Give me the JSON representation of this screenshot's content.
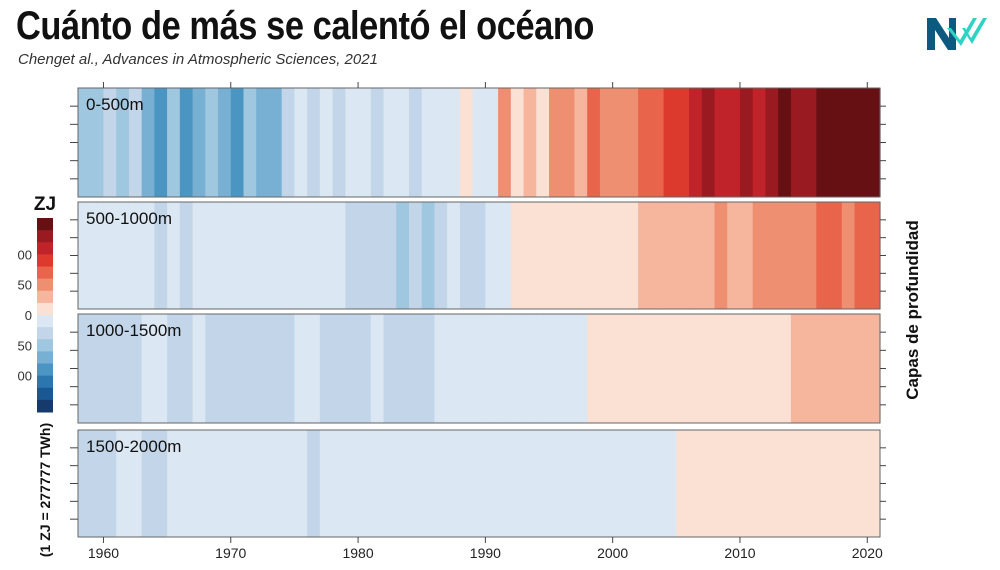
{
  "title": "Cuánto de más se calentó el océano",
  "subtitle": "Chenget al., Advances in Atmospheric Sciences, 2021",
  "logo_text": "NV",
  "brand_colors": {
    "dark": "#0d5a80",
    "accent": "#2ed3c3"
  },
  "chart_data": {
    "type": "heatmap",
    "x_range": [
      1958,
      2021
    ],
    "x_ticks": [
      "1960",
      "1970",
      "1980",
      "1990",
      "2000",
      "2010",
      "2020"
    ],
    "right_label": "Capas de profundidad",
    "colorbar": {
      "title": "ZJ",
      "tick_labels": [
        "00",
        "50",
        "0",
        "50",
        "00"
      ],
      "note": "(1 ZJ = 277777 TWh)",
      "levels_red": [
        "#fbe0d4",
        "#f6b59d",
        "#ee8f71",
        "#e8644a",
        "#dc3a2d",
        "#c0242a",
        "#991a20",
        "#661014"
      ],
      "levels_blue": [
        "#dbe7f2",
        "#c3d6e9",
        "#9fc7e0",
        "#78b0d3",
        "#4b95c3",
        "#2c76b0",
        "#1a5893",
        "#153a6b"
      ]
    },
    "years_start": 1958,
    "panels": [
      {
        "label": "0-500m",
        "levels": [
          -3,
          -3,
          -2,
          -3,
          -2,
          -4,
          -5,
          -3,
          -5,
          -4,
          -3,
          -4,
          -5,
          -3,
          -4,
          -4,
          -2,
          -1,
          -2,
          -1,
          -2,
          -1,
          -1,
          -2,
          -1,
          -1,
          -2,
          -1,
          -1,
          -1,
          1,
          -1,
          -1,
          3,
          1,
          2,
          1,
          3,
          3,
          2,
          4,
          3,
          3,
          3,
          4,
          4,
          5,
          5,
          6,
          7,
          6,
          6,
          7,
          6,
          7,
          8,
          7,
          7,
          8,
          8,
          8,
          8,
          8
        ]
      },
      {
        "label": "500-1000m",
        "levels": [
          -1,
          -1,
          -1,
          -1,
          -1,
          -1,
          -2,
          -1,
          -2,
          -1,
          -1,
          -1,
          -1,
          -1,
          -1,
          -1,
          -1,
          -1,
          -1,
          -1,
          -1,
          -2,
          -2,
          -2,
          -2,
          -3,
          -2,
          -3,
          -2,
          -1,
          -2,
          -2,
          -1,
          -1,
          1,
          1,
          1,
          1,
          1,
          1,
          1,
          1,
          1,
          1,
          2,
          2,
          2,
          2,
          2,
          2,
          3,
          2,
          2,
          3,
          3,
          3,
          3,
          3,
          4,
          4,
          3,
          4,
          4
        ]
      },
      {
        "label": "1000-1500m",
        "levels": [
          -2,
          -2,
          -2,
          -2,
          -2,
          -1,
          -1,
          -2,
          -2,
          -1,
          -2,
          -2,
          -2,
          -2,
          -2,
          -2,
          -2,
          -1,
          -1,
          -2,
          -2,
          -2,
          -2,
          -1,
          -2,
          -2,
          -2,
          -2,
          -1,
          -1,
          -1,
          -1,
          -1,
          -1,
          -1,
          -1,
          -1,
          -1,
          -1,
          -1,
          1,
          1,
          1,
          1,
          1,
          1,
          1,
          1,
          1,
          1,
          1,
          1,
          1,
          1,
          1,
          1,
          2,
          2,
          2,
          2,
          2,
          2,
          2
        ]
      },
      {
        "label": "1500-2000m",
        "levels": [
          -2,
          -2,
          -2,
          -1,
          -1,
          -2,
          -2,
          -1,
          -1,
          -1,
          -1,
          -1,
          -1,
          -1,
          -1,
          -1,
          -1,
          -1,
          -2,
          -1,
          -1,
          -1,
          -1,
          -1,
          -1,
          -1,
          -1,
          -1,
          -1,
          -1,
          -1,
          -1,
          -1,
          -1,
          -1,
          -1,
          -1,
          -1,
          -1,
          -1,
          -1,
          -1,
          -1,
          -1,
          -1,
          -1,
          -1,
          1,
          1,
          1,
          1,
          1,
          1,
          1,
          1,
          1,
          1,
          1,
          1,
          1,
          1,
          1,
          1
        ]
      }
    ]
  }
}
